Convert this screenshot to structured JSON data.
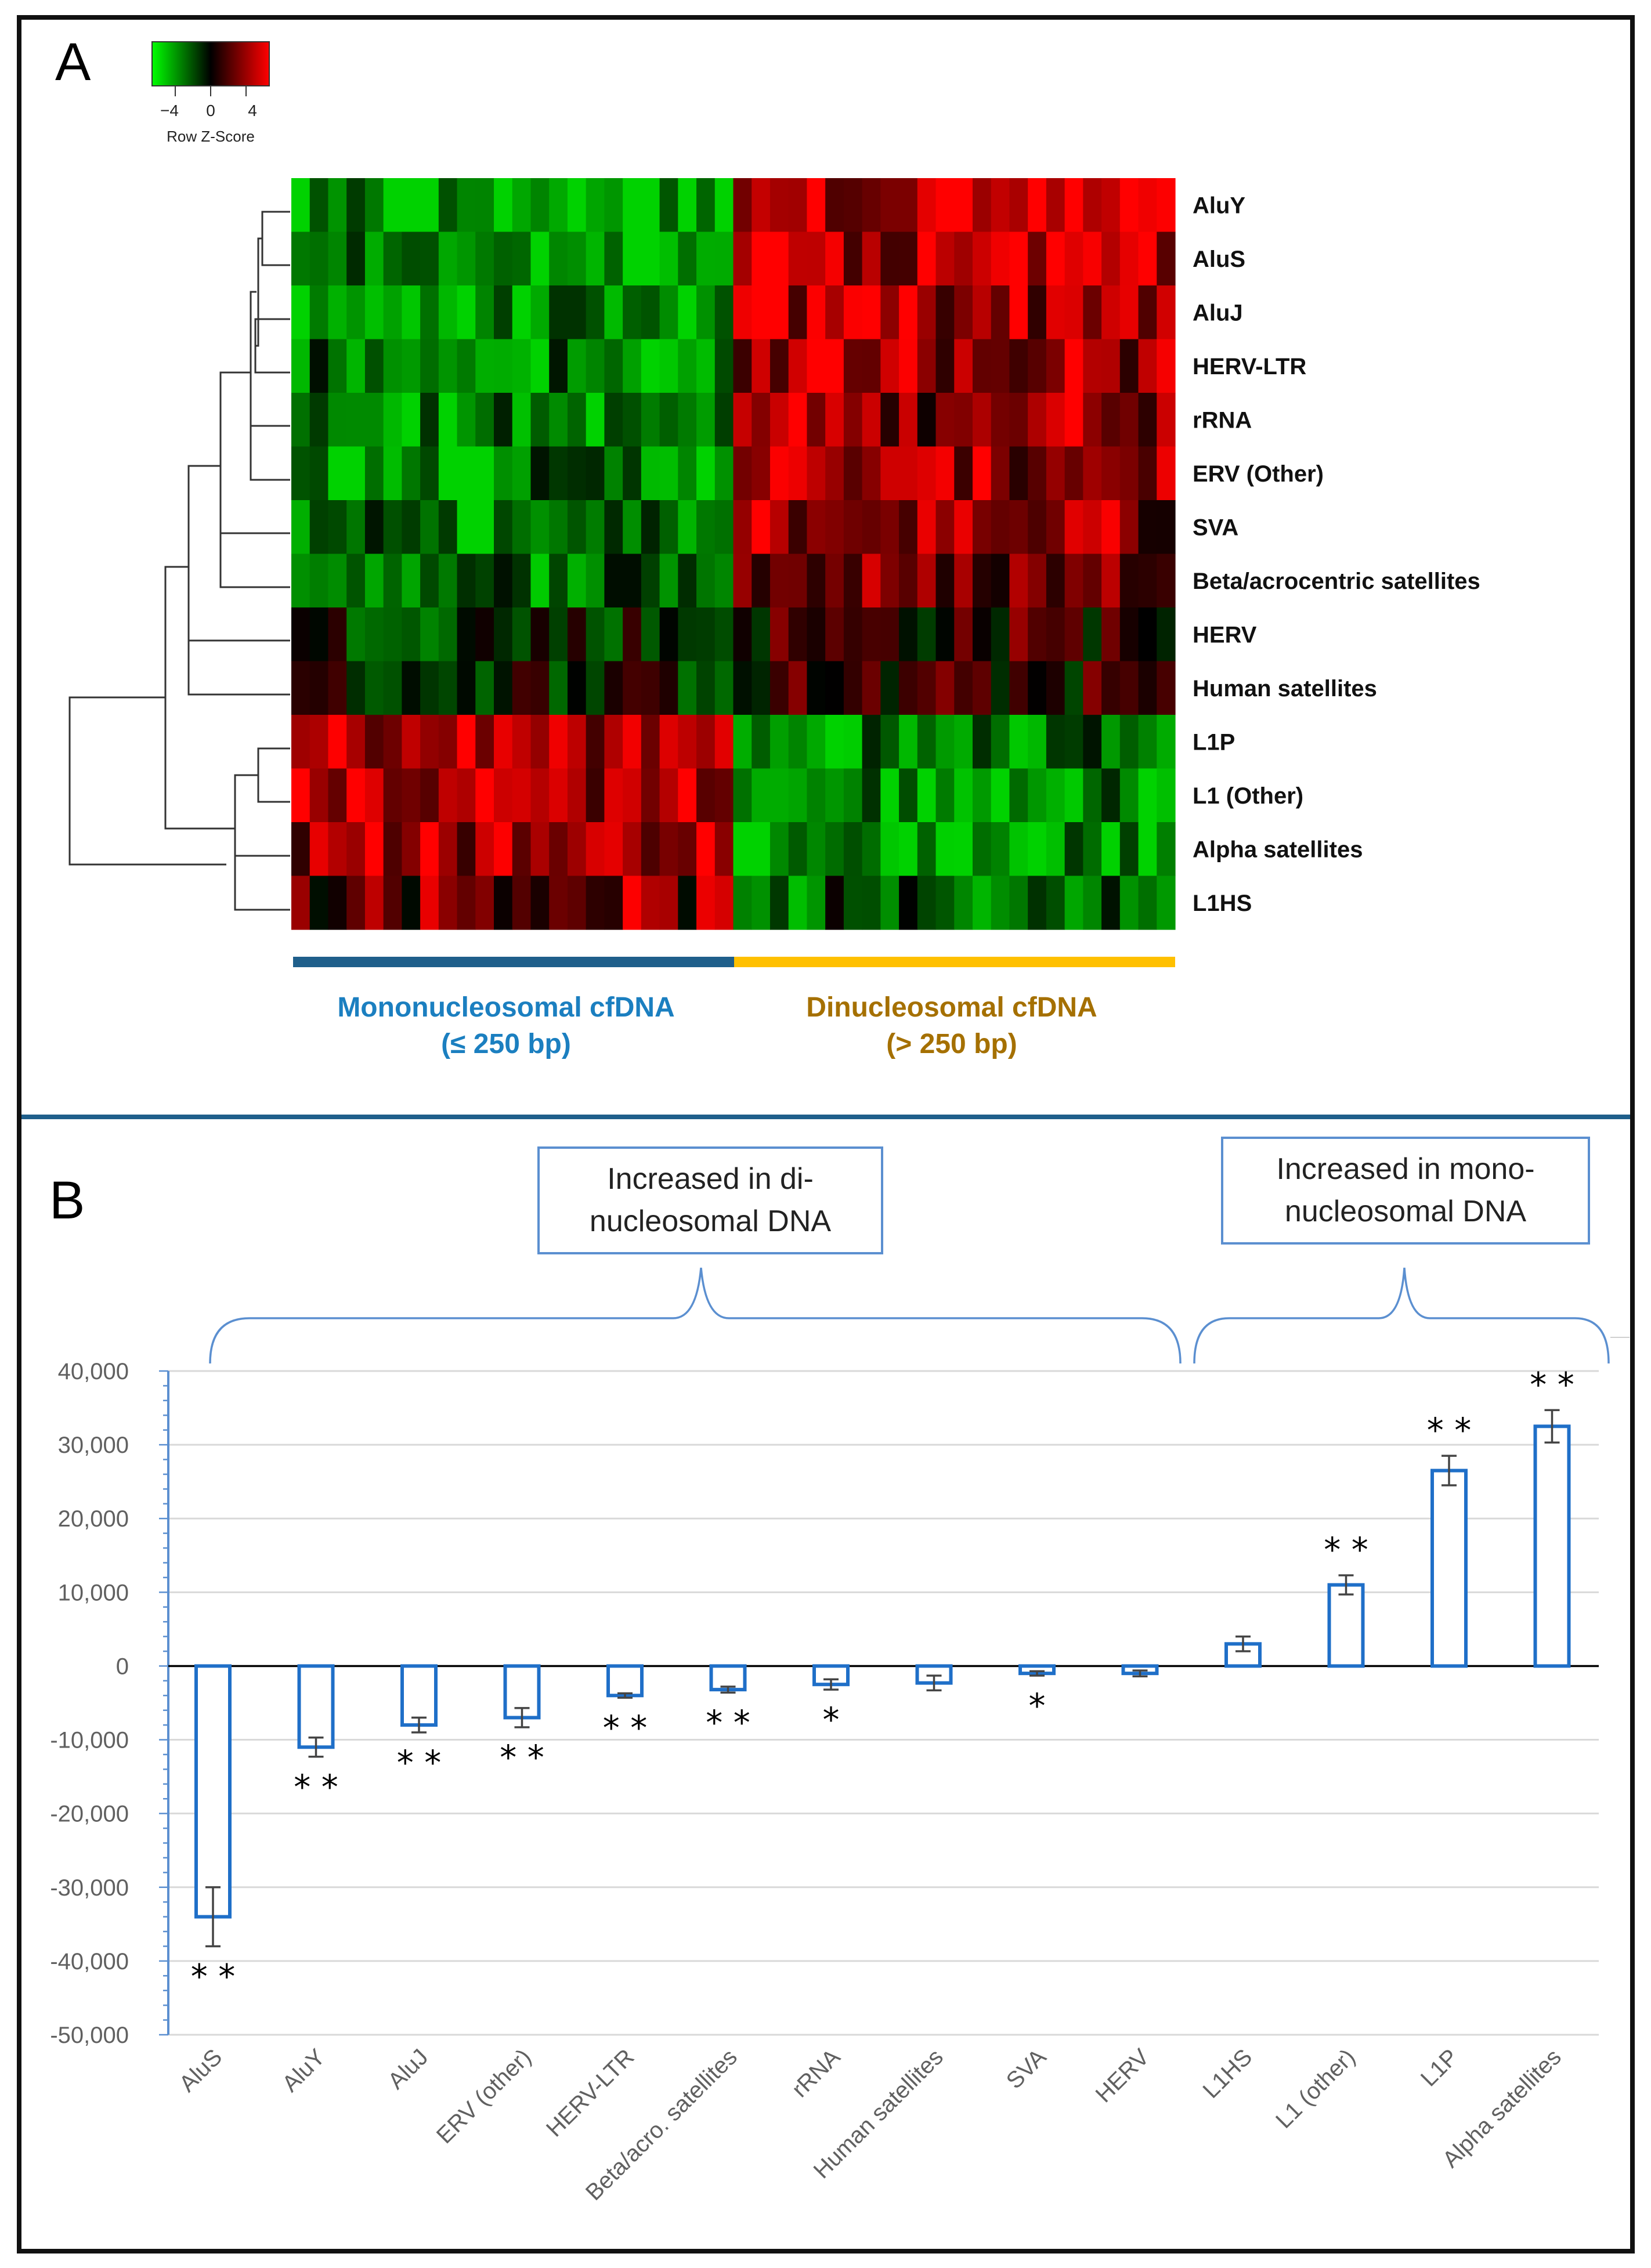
{
  "colors": {
    "low": "#00c800",
    "mid": "#000000",
    "high": "#ff0000",
    "mono_bar": "#1f5f8b",
    "di_bar": "#ffc000",
    "mono_text": "#1b7fc0",
    "di_text": "#a57000",
    "bar": "#1f6fc8",
    "brace": "#5b8fd0",
    "axis": "#5b8fd0",
    "grid": "#d9d9d9",
    "error": "#444444",
    "tick_text": "#606060",
    "panel_border": "#111111",
    "divider": "#1f5f8b"
  },
  "panel_a": {
    "label": "A",
    "color_key": {
      "title": "Row Z-Score",
      "ticks": [
        "−4",
        "0",
        "4"
      ]
    },
    "heatmap_rows": [
      {
        "label": "AluY",
        "level": 1.0
      },
      {
        "label": "AluS",
        "level": 1.0
      },
      {
        "label": "AluJ",
        "level": 0.95
      },
      {
        "label": "HERV-LTR",
        "level": 0.9
      },
      {
        "label": "rRNA",
        "level": 0.8
      },
      {
        "label": "ERV (Other)",
        "level": 0.75
      },
      {
        "label": "SVA",
        "level": 0.7
      },
      {
        "label": "Beta/acrocentric satellites",
        "level": 0.55
      },
      {
        "label": "HERV",
        "level": 0.2
      },
      {
        "label": "Human satellites",
        "level": 0.15
      },
      {
        "label": "L1P",
        "level": -0.85
      },
      {
        "label": "L1 (Other)",
        "level": -0.9
      },
      {
        "label": "Alpha satellites",
        "level": -0.9
      },
      {
        "label": "L1HS",
        "level": -0.6
      }
    ],
    "groups": {
      "mono_label": "Mononucleosomal cfDNA",
      "mono_sub": "(≤ 250 bp)",
      "di_label": "Dinucleosomal cfDNA",
      "di_sub": "(> 250 bp)"
    }
  },
  "panel_b": {
    "label": "B",
    "callout_di": [
      "Increased in di-",
      "nucleosomal DNA"
    ],
    "callout_mono": [
      "Increased in mono-",
      "nucleosomal DNA"
    ]
  },
  "chart_data": {
    "type": "bar",
    "categories": [
      "AluS",
      "AluY",
      "AluJ",
      "ERV (other)",
      "HERV-LTR",
      "Beta/acro. satellites",
      "rRNA",
      "Human satellites",
      "SVA",
      "HERV",
      "L1HS",
      "L1 (other)",
      "L1P",
      "Alpha satellites"
    ],
    "values": [
      -34000,
      -11000,
      -8000,
      -7000,
      -4000,
      -3200,
      -2500,
      -2300,
      -1000,
      -1000,
      3000,
      11000,
      26500,
      32500
    ],
    "errors": [
      4000,
      1300,
      1000,
      1300,
      300,
      400,
      700,
      1000,
      300,
      400,
      1000,
      1300,
      2000,
      2200
    ],
    "significance": [
      "**",
      "**",
      "**",
      "**",
      "**",
      "**",
      "*",
      "",
      "*",
      "",
      "",
      "**",
      "**",
      "**"
    ],
    "ylim": [
      -50000,
      40000
    ],
    "yticks": [
      -50000,
      -40000,
      -30000,
      -20000,
      -10000,
      0,
      10000,
      20000,
      30000,
      40000
    ],
    "ytick_labels": [
      "-50,000",
      "-40,000",
      "-30,000",
      "-20,000",
      "-10,000",
      "0",
      "10,000",
      "20,000",
      "30,000",
      "40,000"
    ],
    "title": "",
    "xlabel": "",
    "ylabel": "",
    "grid": true
  }
}
